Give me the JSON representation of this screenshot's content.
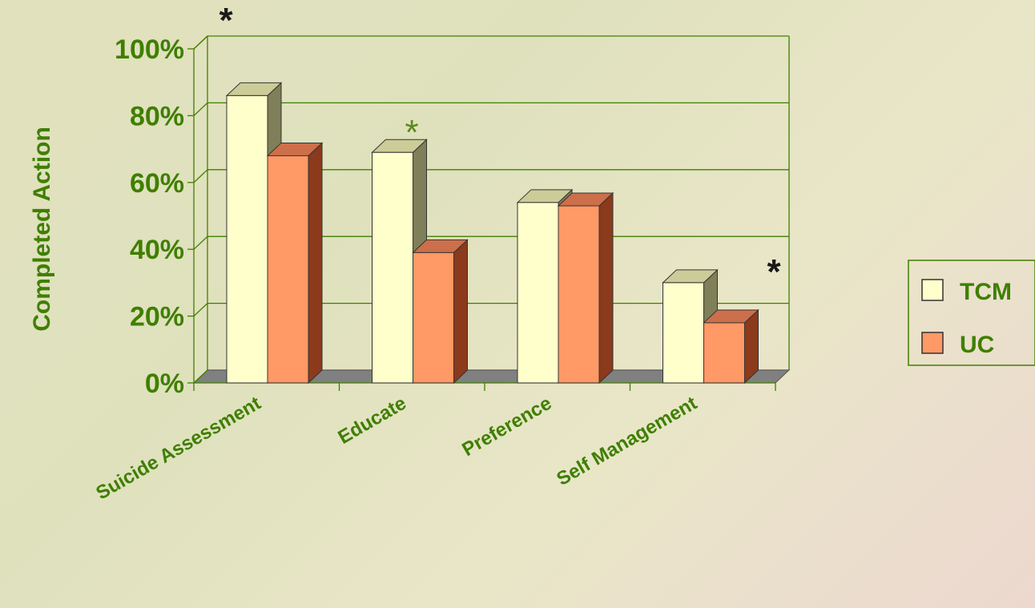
{
  "chart_data": {
    "type": "bar",
    "ylabel": "Completed Action",
    "categories": [
      "Suicide Assessment",
      "Educate",
      "Preference",
      "Self Management"
    ],
    "series": [
      {
        "name": "TCM",
        "values": [
          86,
          69,
          54,
          30
        ],
        "color": "#ffffcc",
        "side_color": "#7f7f59",
        "top_color": "#cccc99"
      },
      {
        "name": "UC",
        "values": [
          68,
          39,
          53,
          18
        ],
        "color": "#ff9966",
        "side_color": "#8b3a1c",
        "top_color": "#cc6f4a"
      }
    ],
    "ylim": [
      0,
      100
    ],
    "yticks": [
      "0%",
      "20%",
      "40%",
      "60%",
      "80%",
      "100%"
    ],
    "annotations": [
      "*",
      "*",
      "*"
    ],
    "legend_position": "right",
    "grid": true,
    "colors": {
      "text": "#3f7f00",
      "axis": "#3f7f00",
      "floor": "#808080"
    }
  }
}
